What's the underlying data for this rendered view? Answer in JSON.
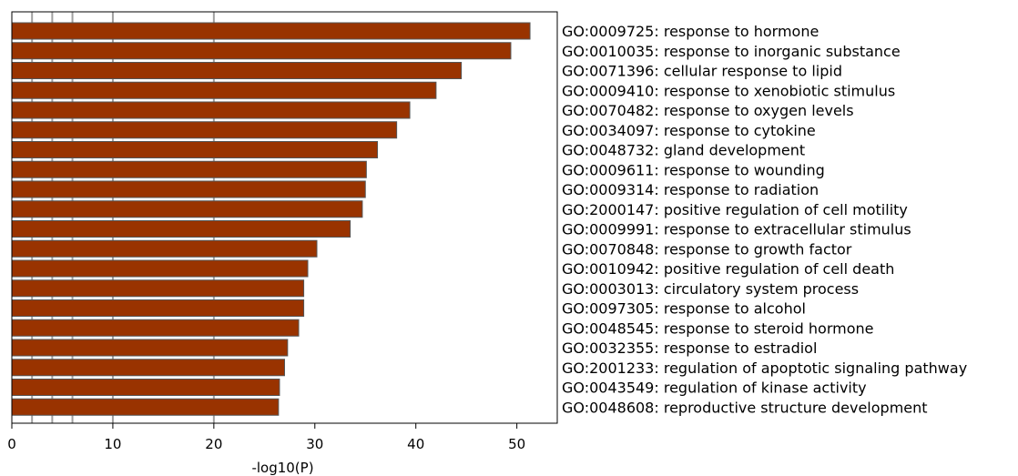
{
  "chart_data": {
    "type": "bar",
    "orientation": "horizontal",
    "xlabel": "-log10(P)",
    "xlim": [
      0,
      54
    ],
    "xticks": [
      0,
      10,
      20,
      30,
      40,
      50
    ],
    "reference_lines": [
      2,
      4,
      6,
      10,
      20
    ],
    "bar_color": "#993300",
    "grid_line_color": "#a0a0a0",
    "categories": [
      "GO:0009725: response to hormone",
      "GO:0010035: response to inorganic substance",
      "GO:0071396: cellular response to lipid",
      "GO:0009410: response to xenobiotic stimulus",
      "GO:0070482: response to oxygen levels",
      "GO:0034097: response to cytokine",
      "GO:0048732: gland development",
      "GO:0009611: response to wounding",
      "GO:0009314: response to radiation",
      "GO:2000147: positive regulation of cell motility",
      "GO:0009991: response to extracellular stimulus",
      "GO:0070848: response to growth factor",
      "GO:0010942: positive regulation of cell death",
      "GO:0003013: circulatory system process",
      "GO:0097305: response to alcohol",
      "GO:0048545: response to steroid hormone",
      "GO:0032355: response to estradiol",
      "GO:2001233: regulation of apoptotic signaling pathway",
      "GO:0043549: regulation of kinase activity",
      "GO:0048608: reproductive structure development"
    ],
    "values": [
      51.3,
      49.4,
      44.5,
      42.0,
      39.4,
      38.1,
      36.2,
      35.1,
      35.0,
      34.7,
      33.5,
      30.2,
      29.3,
      28.9,
      28.9,
      28.4,
      27.3,
      27.0,
      26.5,
      26.4
    ]
  }
}
